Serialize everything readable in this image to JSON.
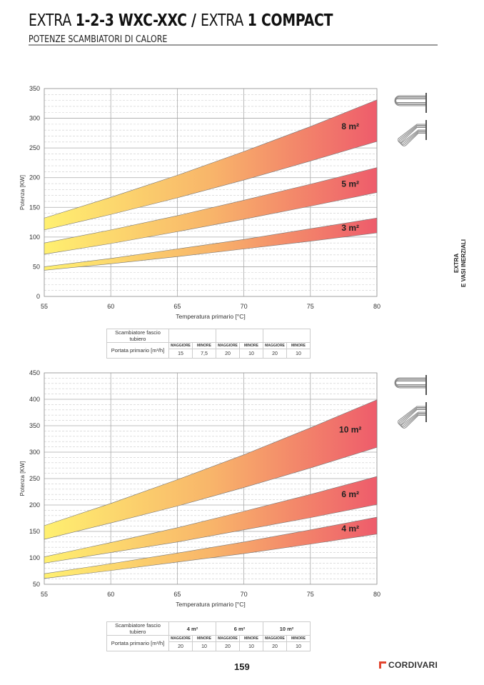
{
  "header": {
    "title_light_1": "EXTRA ",
    "title_bold_1": "1-2-3 WXC-XXC / ",
    "title_light_2": "EXTRA ",
    "title_bold_2": "1 COMPACT",
    "subtitle": "POTENZE SCAMBIATORI DI CALORE"
  },
  "side_tab": {
    "line1": "EXTRA",
    "line2": "E VASI INERZIALI"
  },
  "footer": {
    "page_number": "159",
    "brand": "CORDIVARI"
  },
  "colors": {
    "start": "#fff070",
    "mid": "#f8b56a",
    "end": "#ee5c6b",
    "grid": "#bbbbbb"
  },
  "chart_data": [
    {
      "type": "area",
      "xlabel": "Temperatura primario [°C]",
      "ylabel": "Potenza [KW]",
      "xlim": [
        55,
        80
      ],
      "ylim": [
        0,
        350
      ],
      "xticks": [
        "55",
        "60",
        "65",
        "70",
        "75",
        "80"
      ],
      "yticks": [
        "0",
        "50",
        "100",
        "150",
        "200",
        "250",
        "300",
        "350"
      ],
      "x": [
        55,
        60,
        65,
        70,
        75,
        80
      ],
      "series": [
        {
          "name": "8 m²",
          "upper": [
            132,
            167,
            204,
            244,
            286,
            331
          ],
          "lower": [
            112,
            138,
            166,
            196,
            228,
            261
          ]
        },
        {
          "name": "5 m²",
          "upper": [
            90,
            112,
            136,
            162,
            189,
            217
          ],
          "lower": [
            71,
            89,
            109,
            130,
            152,
            175
          ]
        },
        {
          "name": "3 m²",
          "upper": [
            50,
            64,
            80,
            96,
            114,
            132
          ],
          "lower": [
            44,
            55,
            67,
            80,
            93,
            107
          ]
        }
      ],
      "table": {
        "row1_label": "Scambiatore fascio tubiero",
        "row2_label": "Portata primario [m³/h]",
        "groups": [
          "",
          "",
          ""
        ],
        "sub": [
          "MAGGIORE",
          "MINORE",
          "MAGGIORE",
          "MINORE",
          "MAGGIORE",
          "MINORE"
        ],
        "values": [
          "15",
          "7,5",
          "20",
          "10",
          "20",
          "10"
        ]
      }
    },
    {
      "type": "area",
      "xlabel": "Temperatura primario [°C]",
      "ylabel": "Potenza [KW]",
      "xlim": [
        55,
        80
      ],
      "ylim": [
        50,
        450
      ],
      "xticks": [
        "55",
        "60",
        "65",
        "70",
        "75",
        "80"
      ],
      "yticks": [
        "50",
        "100",
        "150",
        "200",
        "250",
        "300",
        "350",
        "400",
        "450"
      ],
      "x": [
        55,
        60,
        65,
        70,
        75,
        80
      ],
      "series": [
        {
          "name": "10 m²",
          "upper": [
            161,
            203,
            248,
            295,
            346,
            399
          ],
          "lower": [
            135,
            166,
            198,
            233,
            270,
            309
          ]
        },
        {
          "name": "6 m²",
          "upper": [
            102,
            129,
            157,
            188,
            220,
            254
          ],
          "lower": [
            90,
            110,
            130,
            153,
            176,
            201
          ]
        },
        {
          "name": "4 m²",
          "upper": [
            70,
            89,
            109,
            130,
            153,
            177
          ],
          "lower": [
            61,
            76,
            92,
            108,
            126,
            145
          ]
        }
      ],
      "table": {
        "row1_label": "Scambiatore fascio tubiero",
        "row2_label": "Portata primario [m³/h]",
        "groups": [
          "4 m²",
          "6 m²",
          "10 m²"
        ],
        "sub": [
          "MAGGIORE",
          "MINORE",
          "MAGGIORE",
          "MINORE",
          "MAGGIORE",
          "MINORE"
        ],
        "values": [
          "20",
          "10",
          "20",
          "10",
          "20",
          "10"
        ]
      }
    }
  ]
}
